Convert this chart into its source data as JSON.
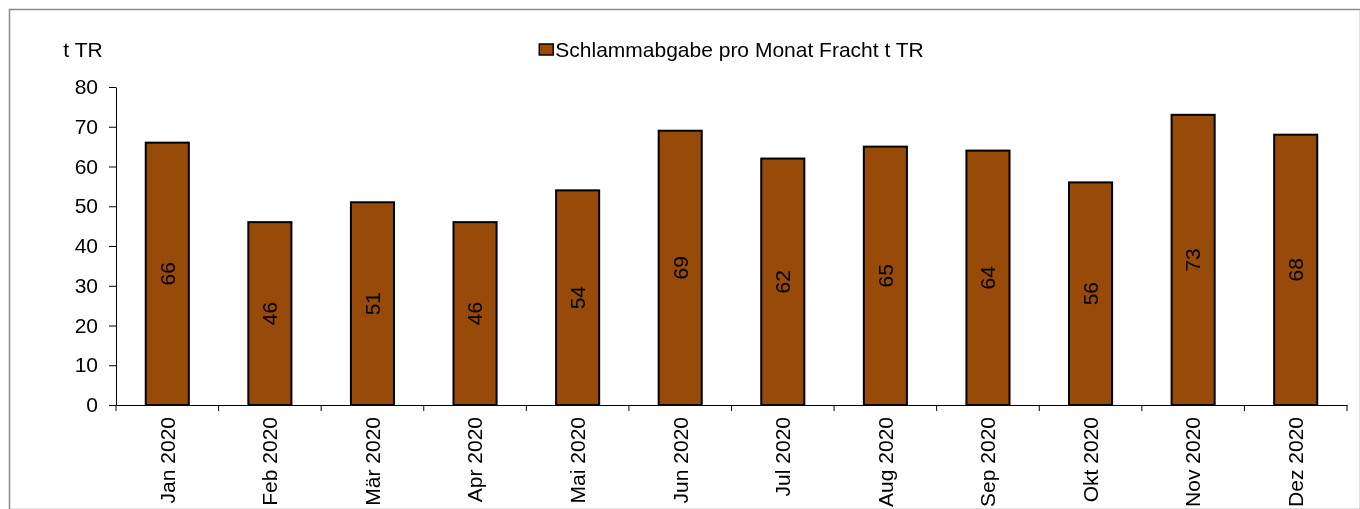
{
  "chart_data": {
    "type": "bar",
    "ylabel": "t TR",
    "categories": [
      "Jan 2020",
      "Feb 2020",
      "Mär 2020",
      "Apr 2020",
      "Mai 2020",
      "Jun 2020",
      "Jul 2020",
      "Aug 2020",
      "Sep 2020",
      "Okt 2020",
      "Nov 2020",
      "Dez 2020"
    ],
    "series": [
      {
        "name": "Schlammabgabe pro Monat Fracht t TR",
        "color": "#984a08",
        "values": [
          66,
          46,
          51,
          46,
          54,
          69,
          62,
          65,
          64,
          56,
          73,
          68
        ]
      }
    ],
    "ylim": [
      0,
      80
    ],
    "yticks": [
      0,
      10,
      20,
      30,
      40,
      50,
      60,
      70,
      80
    ],
    "data_labels": true,
    "legend": "top"
  }
}
